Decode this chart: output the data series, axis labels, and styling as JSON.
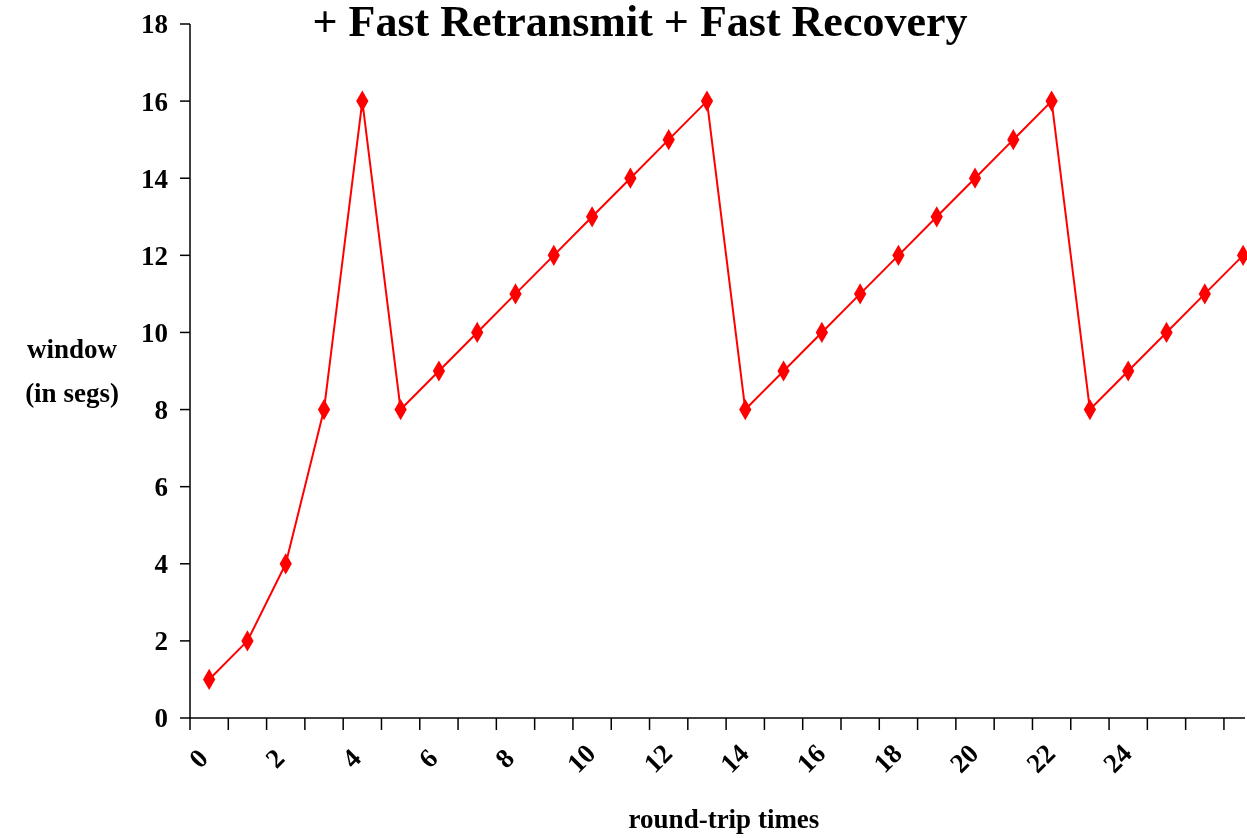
{
  "chart_data": {
    "type": "line",
    "title": "+ Fast Retransmit + Fast Recovery",
    "xlabel": "round-trip times",
    "ylabel": "window\n(in segs)",
    "x": [
      0.5,
      1.5,
      2.5,
      3.5,
      4.5,
      5.5,
      6.5,
      7.5,
      8.5,
      9.5,
      10.5,
      11.5,
      12.5,
      13.5,
      14.5,
      15.5,
      16.5,
      17.5,
      18.5,
      19.5,
      20.5,
      21.5,
      22.5,
      23.5,
      24.5,
      25.5,
      26.5,
      27.5
    ],
    "series": [
      {
        "color": "#ff0000",
        "values": [
          1,
          2,
          4,
          8,
          16,
          8,
          9,
          10,
          11,
          12,
          13,
          14,
          15,
          16,
          8,
          9,
          10,
          11,
          12,
          13,
          14,
          15,
          16,
          8,
          9,
          10,
          11,
          12
        ]
      }
    ],
    "xlim": [
      0,
      27.55
    ],
    "xticks": [
      0,
      {
        "value": 1,
        "label": null
      },
      2,
      {
        "value": 3,
        "label": null
      },
      4,
      {
        "value": 5,
        "label": null
      },
      6,
      {
        "value": 7,
        "label": null
      },
      8,
      {
        "value": 9,
        "label": null
      },
      10,
      {
        "value": 11,
        "label": null
      },
      12,
      {
        "value": 13,
        "label": null
      },
      14,
      {
        "value": 15,
        "label": null
      },
      16,
      {
        "value": 17,
        "label": null
      },
      18,
      {
        "value": 19,
        "label": null
      },
      20,
      {
        "value": 21,
        "label": null
      },
      22,
      {
        "value": 23,
        "label": null
      },
      24,
      {
        "value": 25,
        "label": null
      },
      {
        "value": 26,
        "label": null
      },
      {
        "value": 27,
        "label": null
      }
    ],
    "ylim": [
      0,
      18
    ],
    "yticks": [
      0,
      2,
      4,
      6,
      8,
      10,
      12,
      14,
      16,
      18
    ],
    "grid": false,
    "marker": "diamond",
    "line_style": "solid"
  }
}
